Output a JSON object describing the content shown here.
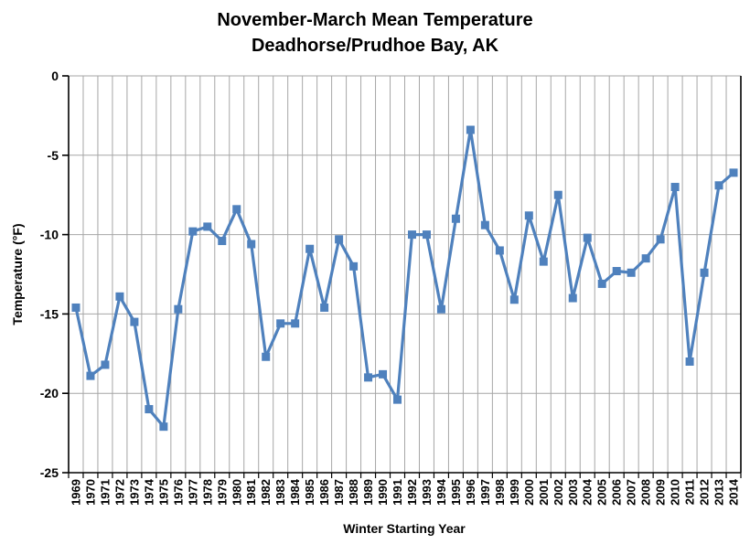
{
  "header": {
    "title_line1": "November-March Mean Temperature",
    "title_line2": "Deadhorse/Prudhoe Bay, AK"
  },
  "chart_data": {
    "type": "line",
    "title": "November-March Mean Temperature",
    "subtitle": "Deadhorse/Prudhoe Bay, AK",
    "xlabel": "Winter Starting Year",
    "ylabel": "Temperature (°F)",
    "ylim": [
      -25,
      0
    ],
    "yticks": [
      0,
      -5,
      -10,
      -15,
      -20,
      -25
    ],
    "grid": "both",
    "legend": "none",
    "x_categories": [
      "1969",
      "1970",
      "1971",
      "1972",
      "1973",
      "1974",
      "1975",
      "1976",
      "1977",
      "1978",
      "1979",
      "1980",
      "1981",
      "1982",
      "1983",
      "1984",
      "1985",
      "1986",
      "1987",
      "1988",
      "1989",
      "1990",
      "1991",
      "1992",
      "1993",
      "1994",
      "1995",
      "1996",
      "1997",
      "1998",
      "1999",
      "2000",
      "2001",
      "2002",
      "2003",
      "2004",
      "2005",
      "2006",
      "2007",
      "2008",
      "2009",
      "2010",
      "2011",
      "2012",
      "2013",
      "2014"
    ],
    "series": [
      {
        "marker": "square",
        "color": "#4F81BD",
        "values": [
          -14.6,
          -18.9,
          -18.2,
          -13.9,
          -15.5,
          -21.0,
          -22.1,
          -14.7,
          -9.8,
          -9.5,
          -10.4,
          -8.4,
          -10.6,
          -17.7,
          -15.6,
          -15.6,
          -10.9,
          -14.6,
          -10.3,
          -12.0,
          -19.0,
          -18.8,
          -20.4,
          -10.0,
          -10.0,
          -14.7,
          -9.0,
          -3.4,
          -9.4,
          -11.0,
          -14.1,
          -8.8,
          -11.7,
          -7.5,
          -14.0,
          -10.2,
          -13.1,
          -12.3,
          -12.4,
          -11.5,
          -10.3,
          -7.0,
          -18.0,
          -12.4,
          -6.9,
          -6.1
        ]
      }
    ]
  },
  "colors": {
    "series_blue": "#4F81BD",
    "gridline_gray": "#A6A6A6",
    "axis_black": "#000000",
    "background": "#FFFFFF"
  }
}
